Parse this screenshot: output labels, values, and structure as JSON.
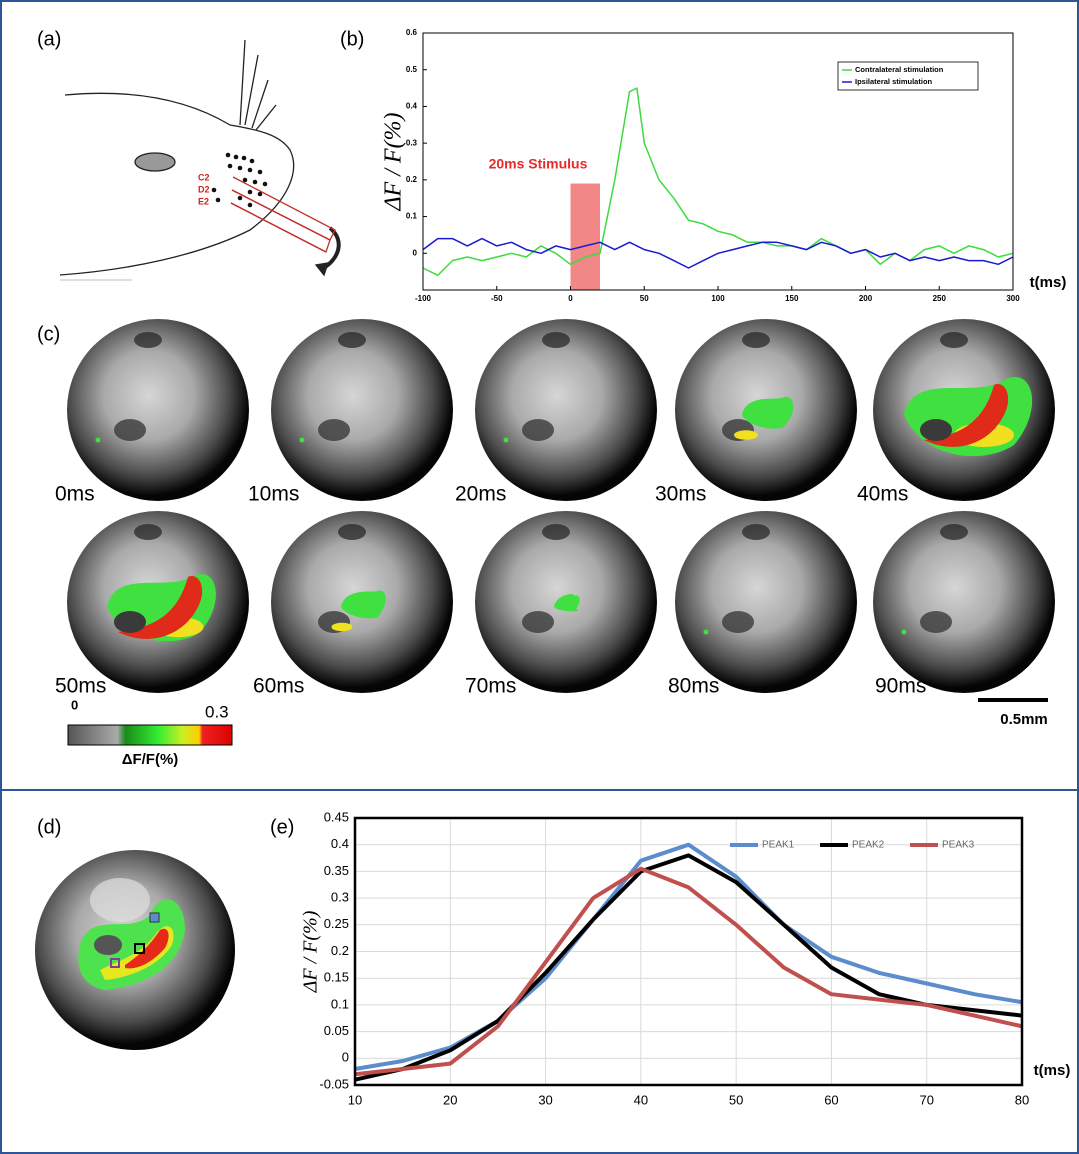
{
  "panels": [
    "(a)",
    "(b)",
    "(c)",
    "(d)",
    "(e)"
  ],
  "whiskers": [
    "C2",
    "D2",
    "E2"
  ],
  "frames": [
    "0ms",
    "10ms",
    "20ms",
    "30ms",
    "40ms",
    "50ms",
    "60ms",
    "70ms",
    "80ms",
    "90ms"
  ],
  "colorbar": {
    "min_label": "0",
    "max_label": "0.3",
    "label": "ΔF/F(%)"
  },
  "scale_bar": "0.5mm",
  "chart_data": [
    {
      "type": "line",
      "y_label": "ΔF / F(%)",
      "x_label": "t(ms)",
      "annotation": "20ms Stimulus",
      "stimulus_range": [
        0,
        20
      ],
      "stimulus_color": "#f07a7a",
      "x": [
        -100,
        -90,
        -80,
        -70,
        -60,
        -50,
        -40,
        -30,
        -20,
        -10,
        0,
        10,
        20,
        30,
        40,
        45,
        50,
        60,
        70,
        80,
        90,
        100,
        110,
        120,
        130,
        140,
        150,
        160,
        170,
        180,
        190,
        200,
        210,
        220,
        230,
        240,
        250,
        260,
        270,
        280,
        290,
        300
      ],
      "series": [
        {
          "name": "Contralateral stimulation",
          "color": "#3ddc3d",
          "values": [
            -0.04,
            -0.06,
            -0.02,
            -0.01,
            -0.02,
            -0.01,
            0,
            -0.01,
            0.02,
            0,
            -0.03,
            -0.01,
            0,
            0.2,
            0.44,
            0.45,
            0.3,
            0.2,
            0.15,
            0.09,
            0.08,
            0.06,
            0.05,
            0.03,
            0.03,
            0.02,
            0.02,
            0.01,
            0.04,
            0.02,
            0,
            0.01,
            -0.03,
            0,
            -0.02,
            0.01,
            0.02,
            0,
            0.02,
            0.01,
            -0.01,
            0
          ]
        },
        {
          "name": "Ipsilateral stimulation",
          "color": "#1a1ad0",
          "values": [
            0.01,
            0.04,
            0.04,
            0.02,
            0.04,
            0.02,
            0.03,
            0.01,
            0,
            0.02,
            0.01,
            0.02,
            0.03,
            0.01,
            0.03,
            0.02,
            0.01,
            0,
            -0.02,
            -0.04,
            -0.02,
            0,
            0.01,
            0.02,
            0.03,
            0.03,
            0.02,
            0.01,
            0.03,
            0.02,
            0,
            0.01,
            -0.01,
            0,
            -0.02,
            -0.01,
            -0.02,
            -0.01,
            -0.02,
            -0.02,
            -0.03,
            -0.01
          ]
        }
      ],
      "xlim": [
        -100,
        300
      ],
      "xticks": [
        -100,
        -50,
        0,
        50,
        100,
        150,
        200,
        250,
        300
      ],
      "ylim": [
        -0.1,
        0.6
      ],
      "yticks": [
        0,
        0.1,
        0.2,
        0.3,
        0.4,
        0.5,
        0.6
      ],
      "grid": false,
      "legend": "top-right"
    },
    {
      "type": "line",
      "y_label": "ΔF / F(%)",
      "x_label": "t(ms)",
      "x": [
        10,
        15,
        20,
        25,
        30,
        35,
        40,
        45,
        50,
        55,
        60,
        65,
        70,
        75,
        80
      ],
      "series": [
        {
          "name": "PEAK1",
          "color": "#5b8ccc",
          "values": [
            -0.02,
            -0.005,
            0.02,
            0.07,
            0.15,
            0.26,
            0.37,
            0.4,
            0.34,
            0.25,
            0.19,
            0.16,
            0.14,
            0.12,
            0.105
          ]
        },
        {
          "name": "PEAK2",
          "color": "#000000",
          "values": [
            -0.04,
            -0.02,
            0.015,
            0.07,
            0.16,
            0.26,
            0.35,
            0.38,
            0.33,
            0.25,
            0.17,
            0.12,
            0.1,
            0.09,
            0.08
          ]
        },
        {
          "name": "PEAK3",
          "color": "#c0504d",
          "values": [
            -0.03,
            -0.02,
            -0.01,
            0.06,
            0.18,
            0.3,
            0.355,
            0.32,
            0.25,
            0.17,
            0.12,
            0.11,
            0.1,
            0.08,
            0.06
          ]
        }
      ],
      "xlim": [
        10,
        80
      ],
      "xticks": [
        10,
        20,
        30,
        40,
        50,
        60,
        70,
        80
      ],
      "ylim": [
        -0.05,
        0.45
      ],
      "yticks": [
        -0.05,
        0,
        0.05,
        0.1,
        0.15,
        0.2,
        0.25,
        0.3,
        0.35,
        0.4,
        0.45
      ],
      "grid": true,
      "legend": "top-right"
    }
  ]
}
